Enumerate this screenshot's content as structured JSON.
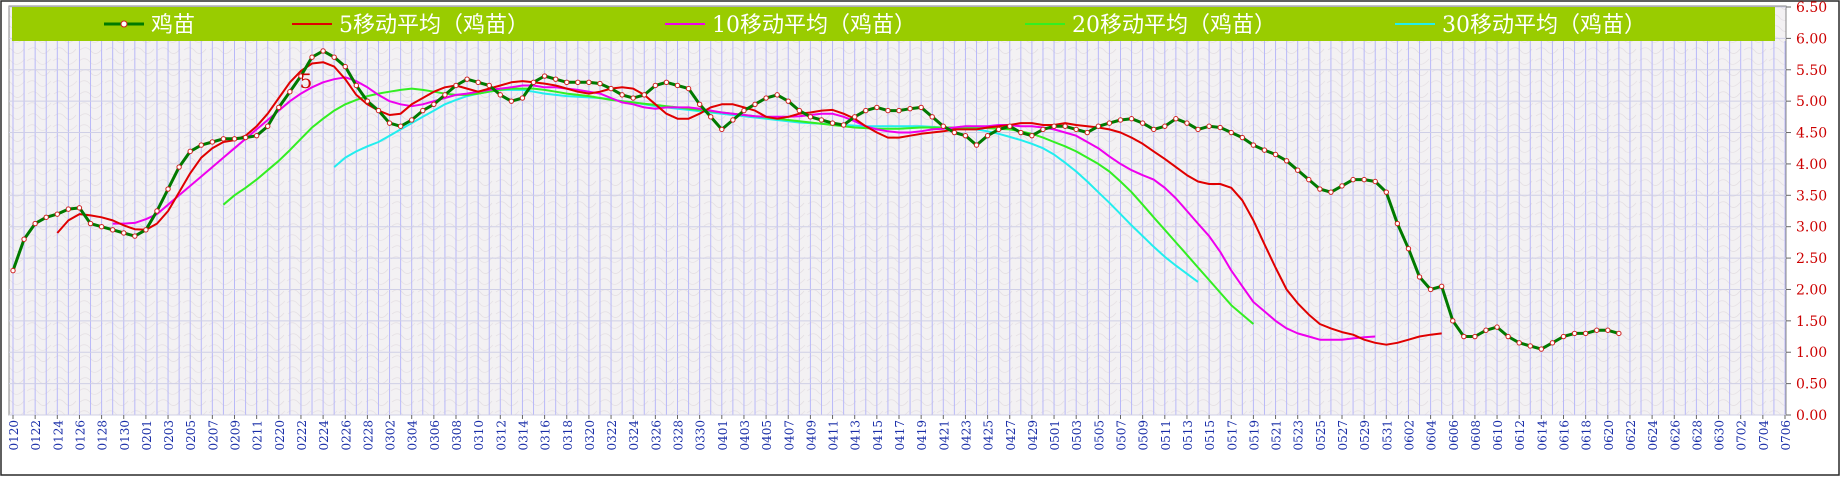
{
  "chart_data": {
    "type": "line",
    "title": "",
    "xlabel": "",
    "ylabel": "",
    "ylim": [
      0,
      6.5
    ],
    "yticks": [
      "0.00",
      "0.50",
      "1.00",
      "1.50",
      "2.00",
      "2.50",
      "3.00",
      "3.50",
      "4.00",
      "4.50",
      "5.00",
      "5.50",
      "6.00",
      "6.50"
    ],
    "xticks": [
      "0120",
      "0122",
      "0124",
      "0126",
      "0128",
      "0130",
      "0201",
      "0203",
      "0205",
      "0207",
      "0209",
      "0211",
      "0220",
      "0222",
      "0224",
      "0226",
      "0228",
      "0302",
      "0304",
      "0306",
      "0308",
      "0310",
      "0312",
      "0314",
      "0316",
      "0318",
      "0320",
      "0322",
      "0324",
      "0326",
      "0328",
      "0330",
      "0401",
      "0403",
      "0405",
      "0407",
      "0409",
      "0411",
      "0413",
      "0415",
      "0417",
      "0419",
      "0421",
      "0423",
      "0425",
      "0427",
      "0429",
      "0501",
      "0503",
      "0505",
      "0507",
      "0509",
      "0511",
      "0513",
      "0515",
      "0517",
      "0519",
      "0521",
      "0523",
      "0525",
      "0527",
      "0529",
      "0531",
      "0602",
      "0604",
      "0606",
      "0608",
      "0610",
      "0612",
      "0614",
      "0616",
      "0618",
      "0620",
      "0622",
      "0624",
      "0626",
      "0628",
      "0630",
      "0702",
      "0704",
      "0706"
    ],
    "annotation": "5",
    "legend_position": "top",
    "grid": true,
    "colors": {
      "axis_text": "#cc0000",
      "x_tick_text": "#1a2ea8",
      "legend_bg": "#99cc00",
      "legend_text": "#ffffff",
      "grid": "#b8b8f8",
      "plot_bg": "#f3f1f3"
    },
    "series": [
      {
        "name": "鸡苗",
        "color": "#007a00",
        "marker": true,
        "start": 0,
        "values": [
          2.3,
          2.8,
          3.05,
          3.15,
          3.2,
          3.28,
          3.3,
          3.05,
          3.0,
          2.95,
          2.9,
          2.85,
          2.95,
          3.25,
          3.6,
          3.95,
          4.2,
          4.3,
          4.35,
          4.4,
          4.4,
          4.42,
          4.45,
          4.6,
          4.9,
          5.15,
          5.4,
          5.7,
          5.8,
          5.7,
          5.55,
          5.25,
          5.0,
          4.85,
          4.65,
          4.6,
          4.7,
          4.85,
          4.95,
          5.1,
          5.25,
          5.35,
          5.3,
          5.25,
          5.1,
          5.0,
          5.05,
          5.3,
          5.4,
          5.35,
          5.3,
          5.3,
          5.3,
          5.28,
          5.2,
          5.1,
          5.05,
          5.1,
          5.25,
          5.3,
          5.25,
          5.2,
          4.95,
          4.75,
          4.55,
          4.7,
          4.85,
          4.95,
          5.05,
          5.1,
          5.0,
          4.85,
          4.75,
          4.7,
          4.65,
          4.62,
          4.75,
          4.85,
          4.9,
          4.85,
          4.85,
          4.88,
          4.9,
          4.75,
          4.6,
          4.5,
          4.45,
          4.3,
          4.45,
          4.55,
          4.6,
          4.5,
          4.45,
          4.55,
          4.6,
          4.6,
          4.55,
          4.5,
          4.6,
          4.65,
          4.7,
          4.72,
          4.65,
          4.55,
          4.6,
          4.72,
          4.65,
          4.55,
          4.6,
          4.58,
          4.5,
          4.42,
          4.3,
          4.22,
          4.15,
          4.05,
          3.9,
          3.75,
          3.6,
          3.55,
          3.65,
          3.75,
          3.75,
          3.72,
          3.55,
          3.05,
          2.65,
          2.2,
          2.0,
          2.05,
          1.5,
          1.25,
          1.25,
          1.35,
          1.4,
          1.25,
          1.15,
          1.1,
          1.05,
          1.15,
          1.25,
          1.3,
          1.3,
          1.35,
          1.35,
          1.3
        ]
      },
      {
        "name": "5移动平均（鸡苗）",
        "color": "#e00000",
        "marker": false,
        "start": 4,
        "values": [
          2.9,
          3.1,
          3.2,
          3.18,
          3.15,
          3.1,
          3.02,
          2.96,
          2.95,
          3.05,
          3.25,
          3.55,
          3.85,
          4.1,
          4.25,
          4.35,
          4.38,
          4.45,
          4.6,
          4.8,
          5.05,
          5.3,
          5.48,
          5.6,
          5.62,
          5.55,
          5.35,
          5.1,
          4.95,
          4.85,
          4.78,
          4.8,
          4.95,
          5.05,
          5.15,
          5.22,
          5.25,
          5.2,
          5.15,
          5.2,
          5.25,
          5.3,
          5.32,
          5.3,
          5.28,
          5.25,
          5.2,
          5.15,
          5.12,
          5.15,
          5.2,
          5.22,
          5.2,
          5.1,
          4.95,
          4.8,
          4.72,
          4.72,
          4.8,
          4.9,
          4.95,
          4.95,
          4.9,
          4.85,
          4.75,
          4.72,
          4.75,
          4.8,
          4.82,
          4.85,
          4.86,
          4.8,
          4.72,
          4.6,
          4.5,
          4.42,
          4.42,
          4.45,
          4.48,
          4.5,
          4.52,
          4.55,
          4.55,
          4.55,
          4.58,
          4.6,
          4.62,
          4.65,
          4.65,
          4.62,
          4.62,
          4.65,
          4.62,
          4.6,
          4.58,
          4.55,
          4.5,
          4.42,
          4.32,
          4.2,
          4.08,
          3.95,
          3.82,
          3.72,
          3.68,
          3.68,
          3.62,
          3.42,
          3.1,
          2.72,
          2.35,
          2.0,
          1.78,
          1.6,
          1.45,
          1.38,
          1.32,
          1.28,
          1.2,
          1.15,
          1.12,
          1.15,
          1.2,
          1.25,
          1.28,
          1.3
        ]
      },
      {
        "name": "10移动平均（鸡苗）",
        "color": "#ee00ee",
        "marker": false,
        "start": 9,
        "values": [
          3.05,
          3.05,
          3.06,
          3.12,
          3.2,
          3.35,
          3.5,
          3.65,
          3.8,
          3.95,
          4.1,
          4.25,
          4.4,
          4.55,
          4.7,
          4.85,
          5.0,
          5.12,
          5.22,
          5.3,
          5.35,
          5.38,
          5.32,
          5.22,
          5.1,
          5.0,
          4.95,
          4.92,
          4.95,
          5.0,
          5.05,
          5.1,
          5.12,
          5.15,
          5.18,
          5.2,
          5.22,
          5.25,
          5.25,
          5.22,
          5.22,
          5.2,
          5.18,
          5.15,
          5.12,
          5.05,
          4.98,
          4.95,
          4.9,
          4.88,
          4.9,
          4.9,
          4.9,
          4.88,
          4.85,
          4.82,
          4.8,
          4.78,
          4.76,
          4.75,
          4.75,
          4.75,
          4.76,
          4.78,
          4.8,
          4.8,
          4.75,
          4.68,
          4.6,
          4.55,
          4.52,
          4.5,
          4.5,
          4.52,
          4.55,
          4.56,
          4.58,
          4.6,
          4.6,
          4.6,
          4.62,
          4.62,
          4.6,
          4.6,
          4.58,
          4.55,
          4.5,
          4.45,
          4.35,
          4.25,
          4.12,
          4.0,
          3.9,
          3.82,
          3.75,
          3.62,
          3.45,
          3.25,
          3.05,
          2.85,
          2.6,
          2.3,
          2.05,
          1.8,
          1.65,
          1.5,
          1.38,
          1.3,
          1.25,
          1.2,
          1.2,
          1.2,
          1.22,
          1.24,
          1.25
        ]
      },
      {
        "name": "20移动平均（鸡苗）",
        "color": "#33ee22",
        "marker": false,
        "start": 19,
        "values": [
          3.35,
          3.5,
          3.62,
          3.75,
          3.9,
          4.05,
          4.22,
          4.4,
          4.58,
          4.72,
          4.85,
          4.95,
          5.02,
          5.08,
          5.12,
          5.15,
          5.18,
          5.2,
          5.18,
          5.15,
          5.12,
          5.1,
          5.1,
          5.12,
          5.15,
          5.18,
          5.2,
          5.2,
          5.2,
          5.18,
          5.15,
          5.12,
          5.1,
          5.08,
          5.05,
          5.02,
          5.0,
          4.98,
          4.96,
          4.94,
          4.92,
          4.9,
          4.88,
          4.86,
          4.84,
          4.82,
          4.8,
          4.78,
          4.76,
          4.74,
          4.72,
          4.7,
          4.68,
          4.66,
          4.64,
          4.62,
          4.6,
          4.58,
          4.57,
          4.56,
          4.56,
          4.56,
          4.57,
          4.58,
          4.58,
          4.58,
          4.58,
          4.58,
          4.58,
          4.57,
          4.56,
          4.55,
          4.52,
          4.48,
          4.42,
          4.35,
          4.28,
          4.2,
          4.1,
          4.0,
          3.88,
          3.72,
          3.55,
          3.35,
          3.15,
          2.95,
          2.75,
          2.55,
          2.35,
          2.15,
          1.95,
          1.75,
          1.6,
          1.45
        ]
      },
      {
        "name": "30移动平均（鸡苗）",
        "color": "#22eeee",
        "marker": false,
        "start": 29,
        "values": [
          3.95,
          4.1,
          4.2,
          4.28,
          4.35,
          4.45,
          4.55,
          4.65,
          4.75,
          4.85,
          4.95,
          5.02,
          5.08,
          5.12,
          5.15,
          5.18,
          5.18,
          5.18,
          5.15,
          5.12,
          5.1,
          5.08,
          5.07,
          5.06,
          5.05,
          5.03,
          5.0,
          4.98,
          4.95,
          4.92,
          4.9,
          4.88,
          4.86,
          4.84,
          4.82,
          4.8,
          4.78,
          4.76,
          4.74,
          4.72,
          4.7,
          4.68,
          4.66,
          4.65,
          4.64,
          4.63,
          4.62,
          4.61,
          4.6,
          4.6,
          4.6,
          4.6,
          4.6,
          4.6,
          4.59,
          4.58,
          4.57,
          4.56,
          4.55,
          4.52,
          4.48,
          4.43,
          4.38,
          4.32,
          4.25,
          4.15,
          4.02,
          3.88,
          3.72,
          3.55,
          3.38,
          3.2,
          3.02,
          2.85,
          2.68,
          2.52,
          2.38,
          2.25,
          2.12
        ]
      }
    ]
  }
}
